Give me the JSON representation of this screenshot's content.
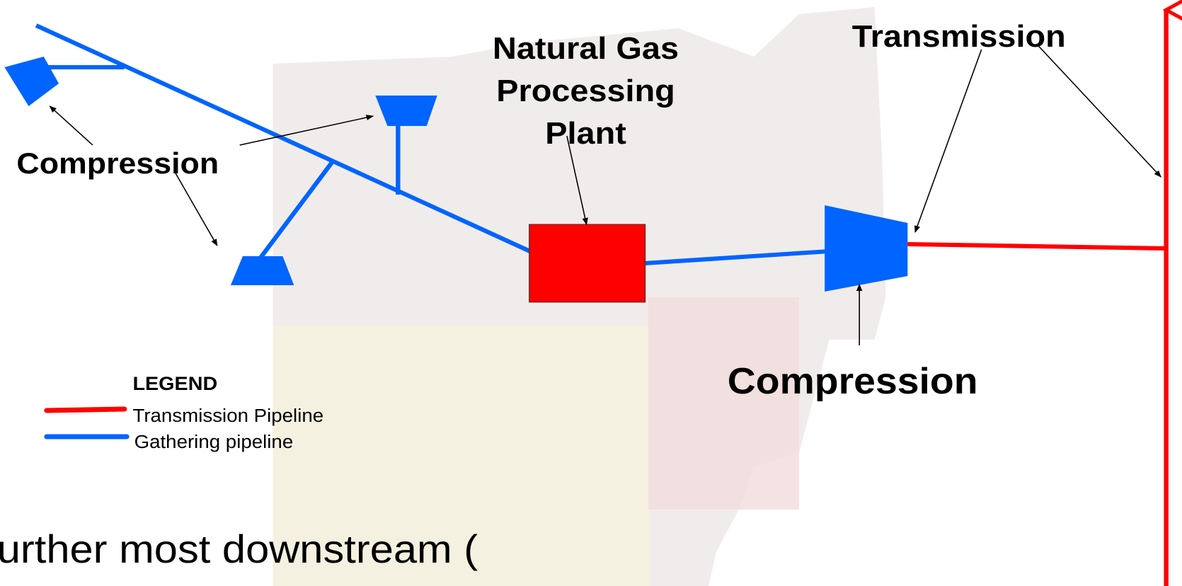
{
  "labels": {
    "plant": [
      "Natural Gas",
      "Processing",
      "Plant"
    ],
    "transmission": "Transmission",
    "compression_left": "Compression",
    "compression_right": "Compression"
  },
  "legend": {
    "title": "LEGEND",
    "items": [
      "Transmission Pipeline",
      "Gathering pipeline"
    ]
  },
  "footer_text": "urther most downstream ("
}
